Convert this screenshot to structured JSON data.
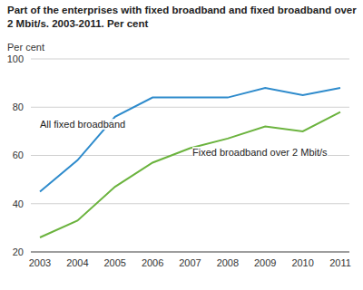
{
  "chart_data": {
    "type": "line",
    "title": "Part of the enterprises with fixed broadband and fixed broadband over 2 Mbit/s. 2003-2011. Per cent",
    "ylabel": "Per cent",
    "categories": [
      "2003",
      "2004",
      "2005",
      "2006",
      "2007",
      "2008",
      "2009",
      "2010",
      "2011"
    ],
    "series": [
      {
        "name": "All fixed broadband",
        "color": "#2e8bcc",
        "values": [
          45,
          58,
          76,
          84,
          84,
          84,
          88,
          85,
          88
        ]
      },
      {
        "name": "Fixed broadband over 2 Mbit/s",
        "color": "#6bb33e",
        "values": [
          26,
          33,
          47,
          57,
          63,
          67,
          72,
          70,
          78
        ]
      }
    ],
    "ylim": [
      20,
      100
    ],
    "yticks": [
      20,
      40,
      60,
      80,
      100
    ],
    "grid": true
  }
}
